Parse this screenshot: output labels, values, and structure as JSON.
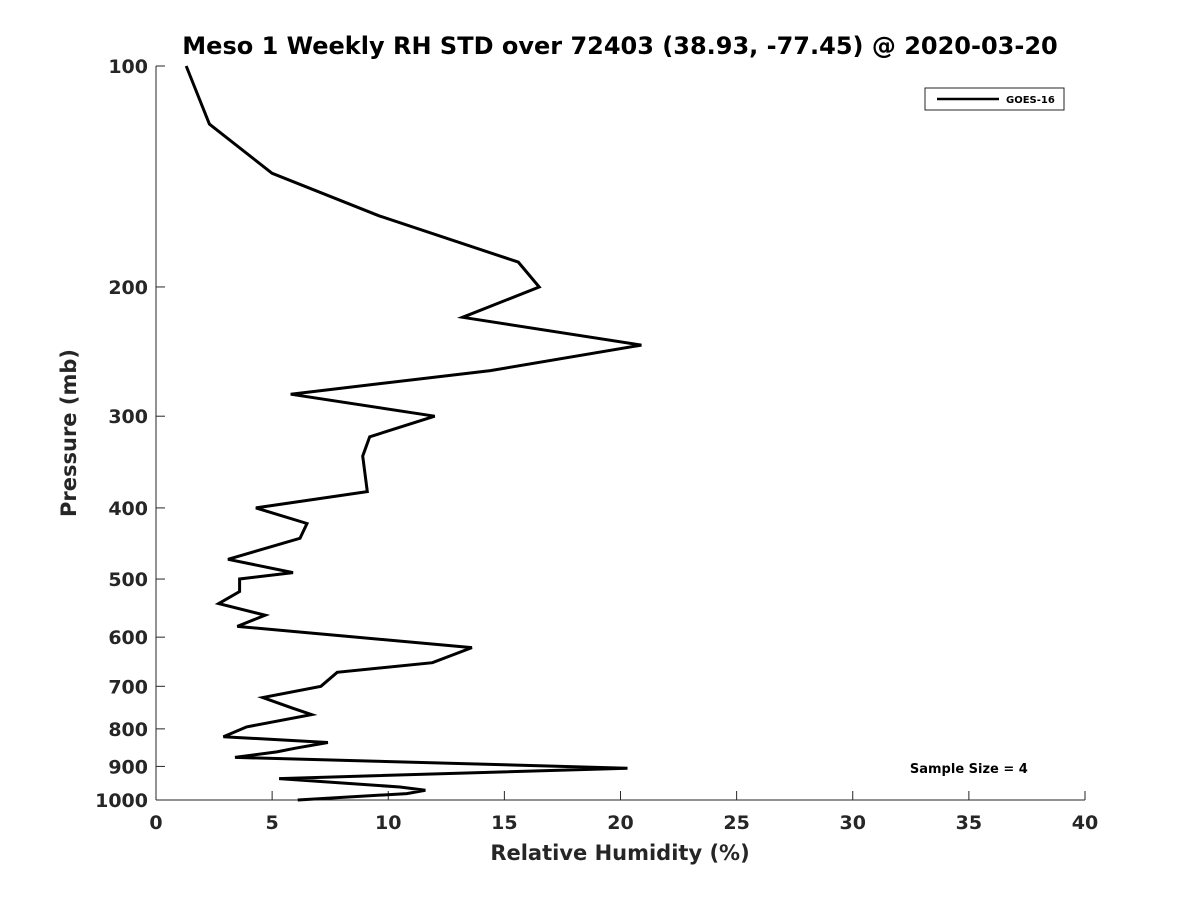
{
  "chart_data": {
    "type": "line",
    "title": "Meso 1 Weekly RH STD over 72403 (38.93, -77.45) @ 2020-03-20",
    "xlabel": "Relative Humidity (%)",
    "ylabel": "Pressure (mb)",
    "xlim": [
      0,
      40
    ],
    "ylim": [
      100,
      1000
    ],
    "y_scale": "log",
    "y_reversed": true,
    "grid": false,
    "legend_position": "top-right",
    "x_ticks": [
      0,
      5,
      10,
      15,
      20,
      25,
      30,
      35,
      40
    ],
    "y_ticks": [
      100,
      200,
      300,
      400,
      500,
      600,
      700,
      800,
      900,
      1000
    ],
    "series": [
      {
        "name": "GOES-16",
        "color": "#000000",
        "x": [
          1.3,
          2.3,
          5.0,
          9.6,
          15.6,
          16.5,
          13.2,
          20.9,
          14.4,
          5.8,
          12.0,
          9.2,
          8.9,
          9.1,
          4.3,
          6.5,
          6.2,
          3.1,
          5.9,
          3.6,
          3.6,
          2.7,
          4.7,
          3.5,
          13.6,
          11.9,
          7.8,
          7.1,
          4.6,
          5.9,
          6.7,
          3.9,
          2.9,
          7.4,
          6.0,
          5.2,
          3.4,
          9.3,
          20.3,
          5.3,
          10.5,
          11.6,
          10.8,
          6.1
        ],
        "y": [
          100,
          120,
          140,
          160,
          185,
          200,
          220,
          240,
          260,
          280,
          300,
          320,
          340,
          380,
          400,
          420,
          440,
          470,
          490,
          500,
          520,
          540,
          560,
          580,
          620,
          650,
          670,
          700,
          725,
          750,
          765,
          795,
          820,
          835,
          850,
          860,
          875,
          885,
          905,
          935,
          960,
          970,
          980,
          1000
        ]
      }
    ],
    "annotations": [
      {
        "text": "Sample Size = 4",
        "x": 35,
        "y": 905
      }
    ]
  }
}
